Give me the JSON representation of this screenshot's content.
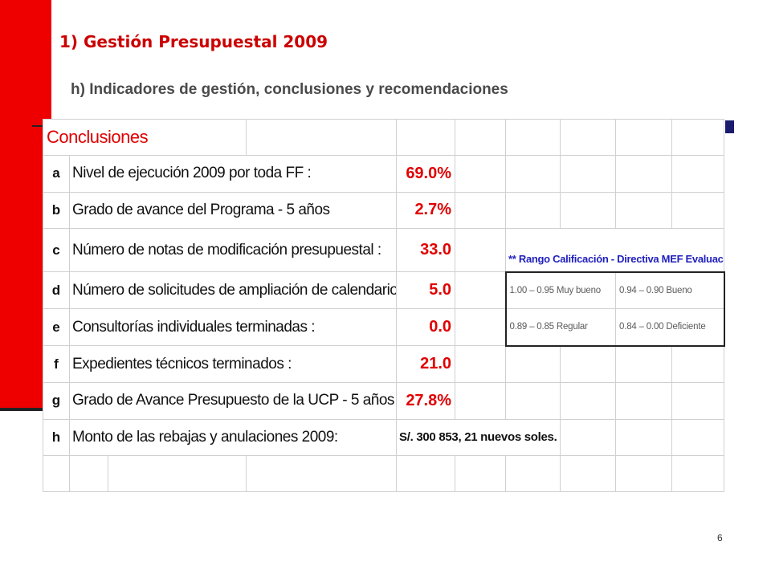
{
  "slide": {
    "title": "1)  Gestión Presupuestal 2009",
    "subtitle": "h) Indicadores de gestión, conclusiones y recomendaciones",
    "page_number": "6"
  },
  "table": {
    "header": "Conclusiones",
    "rows": [
      {
        "letter": "a",
        "label": "Nivel de ejecución 2009 por toda FF :",
        "value": "69.0%"
      },
      {
        "letter": "b",
        "label": "Grado de avance del Programa  - 5 años",
        "value": "2.7%"
      },
      {
        "letter": "c",
        "label": "Número de notas de modificación presupuestal :",
        "value": "33.0"
      },
      {
        "letter": "d",
        "label": "Número de solicitudes de ampliación de calendario de fondos :",
        "value": "5.0"
      },
      {
        "letter": "e",
        "label": "Consultorías individuales terminadas :",
        "value": "0.0"
      },
      {
        "letter": "f",
        "label": "Expedientes técnicos terminados :",
        "value": "21.0"
      },
      {
        "letter": "g",
        "label": "Grado de Avance Presupuesto de la UCP - 5 años",
        "value": "27.8%"
      },
      {
        "letter": "h",
        "label": "Monto de las rebajas y anulaciones 2009:",
        "value": "S/. 300 853, 21 nuevos soles."
      }
    ]
  },
  "rango": {
    "title": "** Rango Calificación - Directiva MEF Evaluación",
    "cells": [
      "1.00 – 0.95 Muy bueno",
      "0.94 – 0.90 Bueno",
      "0.89 – 0.85 Regular",
      "0.84 – 0.00 Deficiente"
    ]
  },
  "colors": {
    "accent_red": "#ee0000",
    "value_red": "#e00000",
    "rango_blue": "#1f1fbf"
  }
}
